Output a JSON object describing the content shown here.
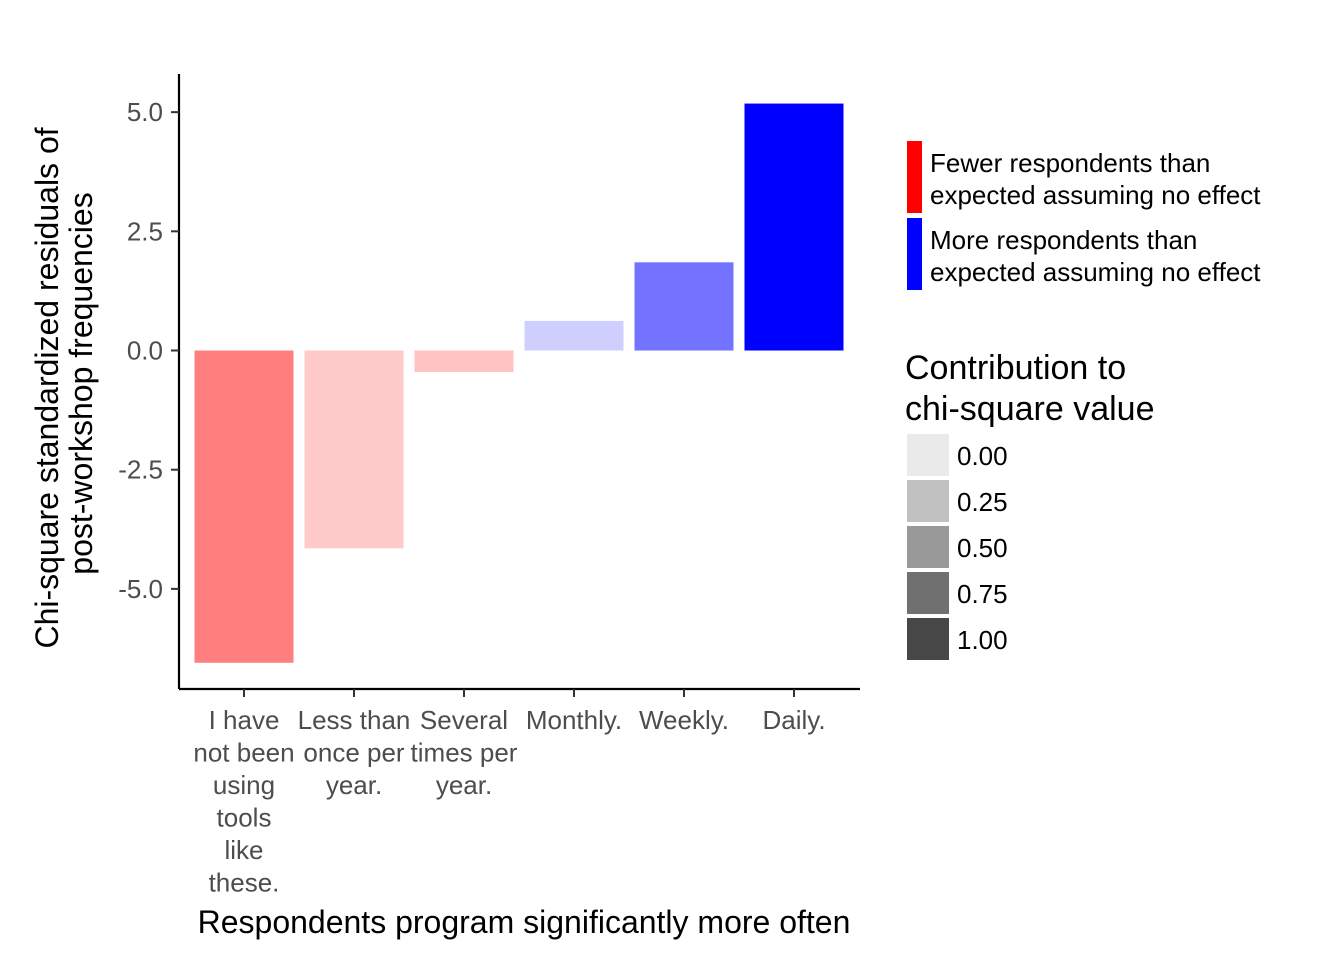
{
  "chart_data": {
    "type": "bar",
    "title": "",
    "xlabel": "Respondents program significantly more often",
    "ylabel_lines": [
      "Chi-square standardized residuals of",
      "post-workshop frequencies"
    ],
    "categories": [
      "I have not been using tools like these.",
      "Less than once per year.",
      "Several times per year.",
      "Monthly.",
      "Weekly.",
      "Daily."
    ],
    "category_label_lines": [
      [
        "I have",
        "not been",
        "using",
        "tools",
        "like",
        "these."
      ],
      [
        "Less than",
        "once per",
        "year."
      ],
      [
        "Several",
        "times per",
        "year."
      ],
      [
        "Monthly."
      ],
      [
        "Weekly."
      ],
      [
        "Daily."
      ]
    ],
    "values": [
      -6.55,
      -4.15,
      -0.45,
      0.62,
      1.85,
      5.18
    ],
    "contribution": [
      0.45,
      0.12,
      0.15,
      0.1,
      0.5,
      1.0
    ],
    "sign_group": [
      "fewer",
      "fewer",
      "fewer",
      "more",
      "more",
      "more"
    ],
    "ylim": [
      -7.1,
      5.8
    ],
    "yticks": [
      5.0,
      2.5,
      0.0,
      -2.5,
      -5.0
    ],
    "ytick_labels": [
      "5.0",
      "2.5",
      "0.0",
      "-2.5",
      "-5.0"
    ],
    "grid": false,
    "legend_placement": "right",
    "legend_fill": {
      "items": [
        {
          "key": "fewer",
          "line1": "Fewer respondents than",
          "line2": "expected assuming no effect",
          "color": "#ff0000"
        },
        {
          "key": "more",
          "line1": "More respondents than",
          "line2": "expected assuming no effect",
          "color": "#0000ff"
        }
      ]
    },
    "legend_alpha": {
      "title_lines": [
        "Contribution to",
        "chi-square value"
      ],
      "items": [
        {
          "label": "0.00",
          "value": 0.0
        },
        {
          "label": "0.25",
          "value": 0.25
        },
        {
          "label": "0.50",
          "value": 0.5
        },
        {
          "label": "0.75",
          "value": 0.75
        },
        {
          "label": "1.00",
          "value": 1.0
        }
      ]
    }
  }
}
